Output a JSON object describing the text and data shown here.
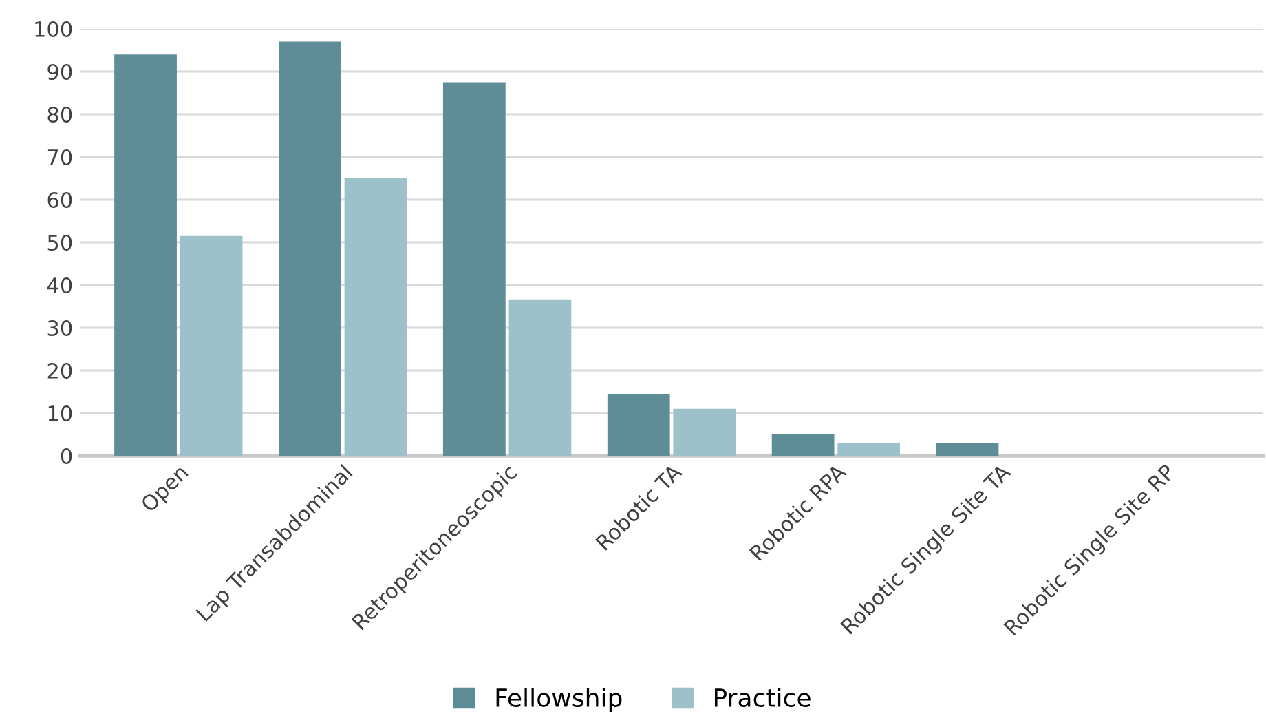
{
  "chart_data": {
    "type": "bar",
    "categories": [
      "Open",
      "Lap Transabdominal",
      "Retroperitoneoscopic",
      "Robotic TA",
      "Robotic RPA",
      "Robotic Single Site TA",
      "Robotic Single Site RP"
    ],
    "series": [
      {
        "name": "Fellowship",
        "color": "#5e8d98",
        "values": [
          94,
          97,
          87.5,
          14.5,
          5,
          3,
          0
        ]
      },
      {
        "name": "Practice",
        "color": "#9dc1ca",
        "values": [
          51.5,
          65,
          36.5,
          11,
          3,
          0,
          0
        ]
      }
    ],
    "ylim": [
      0,
      100
    ],
    "yticks": [
      0,
      10,
      20,
      30,
      40,
      50,
      60,
      70,
      80,
      90,
      100
    ],
    "grid": "y",
    "legend": "bottom"
  }
}
